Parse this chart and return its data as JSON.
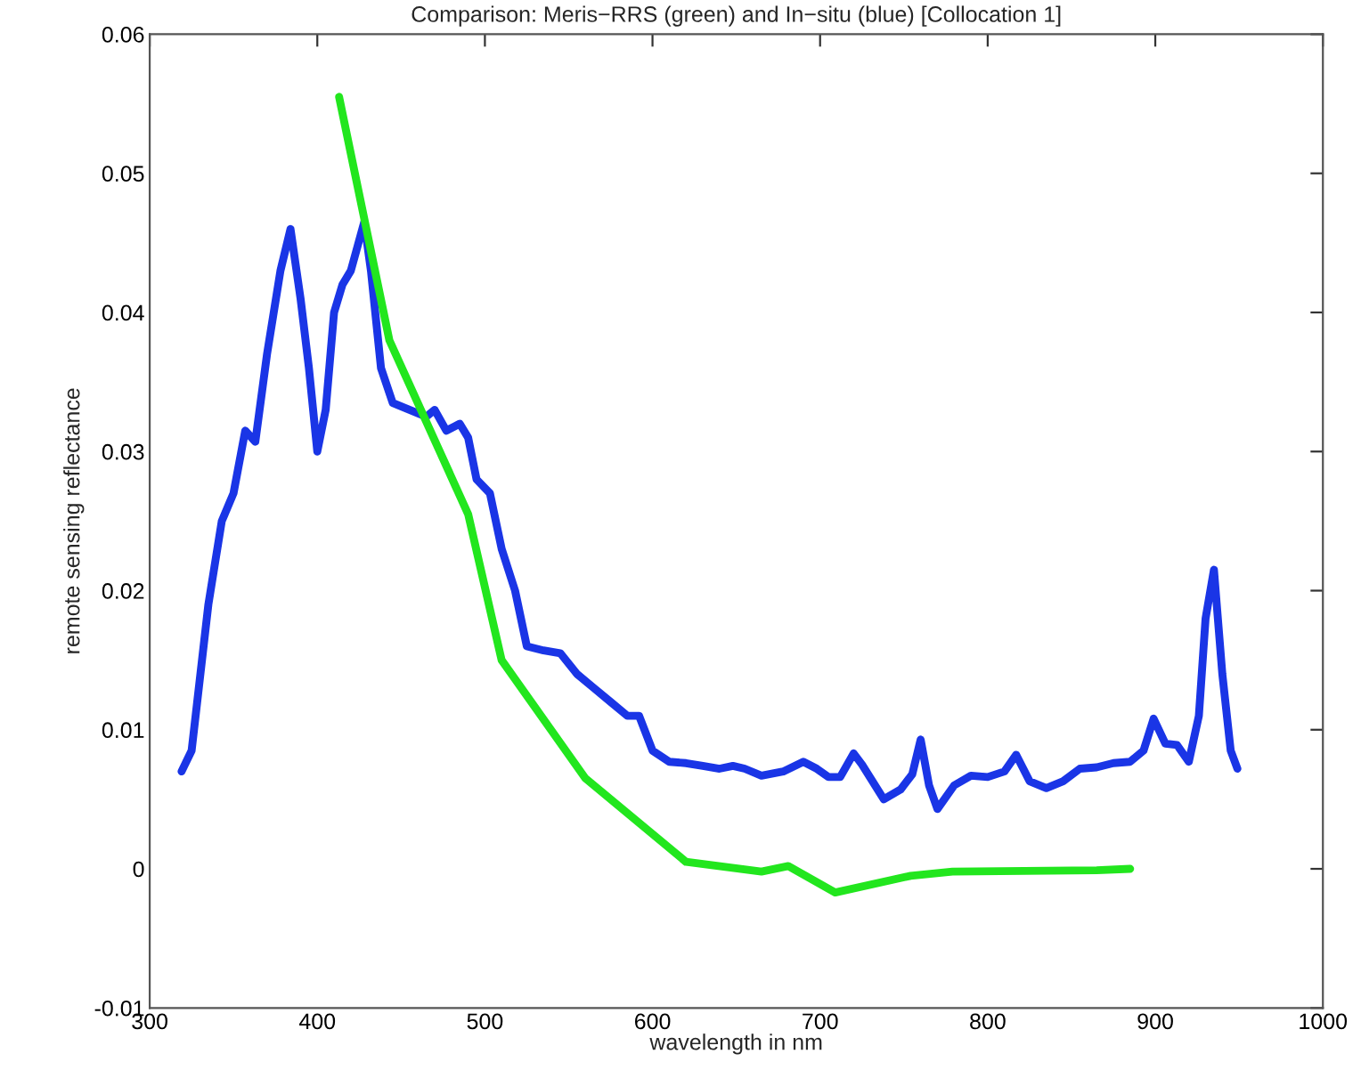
{
  "chart_data": {
    "type": "line",
    "title": "Comparison: Meris−RRS (green) and In−situ (blue) [Collocation 1]",
    "xlabel": "wavelength in nm",
    "ylabel": "remote sensing reflectance",
    "xlim": [
      300,
      1000
    ],
    "xticks": [
      300,
      400,
      500,
      600,
      700,
      800,
      900,
      1000
    ],
    "ylim": [
      -0.01,
      0.06
    ],
    "yticks": [
      -0.01,
      0,
      0.01,
      0.02,
      0.03,
      0.04,
      0.05,
      0.06
    ],
    "grid": false,
    "marker": "none",
    "line_style": "solid",
    "series": [
      {
        "color": "#1a35e6",
        "x": [
          319,
          325,
          335,
          343,
          350,
          357,
          363,
          370,
          378,
          384,
          390,
          395,
          400,
          405,
          410,
          415,
          420,
          428,
          432,
          438,
          445,
          455,
          465,
          470,
          477,
          485,
          490,
          495,
          503,
          510,
          518,
          525,
          535,
          545,
          555,
          565,
          575,
          585,
          592,
          600,
          610,
          620,
          630,
          640,
          648,
          655,
          665,
          678,
          690,
          698,
          705,
          712,
          720,
          725,
          738,
          748,
          755,
          760,
          765,
          770,
          780,
          790,
          800,
          810,
          817,
          825,
          835,
          845,
          855,
          865,
          875,
          885,
          893,
          899,
          906,
          913,
          920,
          926,
          930,
          935,
          940,
          945,
          949
        ],
        "values": [
          0.007,
          0.0085,
          0.019,
          0.025,
          0.027,
          0.0315,
          0.0307,
          0.037,
          0.043,
          0.046,
          0.041,
          0.036,
          0.03,
          0.033,
          0.04,
          0.042,
          0.043,
          0.0465,
          0.043,
          0.036,
          0.0335,
          0.033,
          0.0325,
          0.033,
          0.0315,
          0.032,
          0.031,
          0.028,
          0.027,
          0.023,
          0.02,
          0.016,
          0.0157,
          0.0155,
          0.014,
          0.013,
          0.012,
          0.011,
          0.011,
          0.0085,
          0.0077,
          0.0076,
          0.0074,
          0.0072,
          0.0074,
          0.0072,
          0.0067,
          0.007,
          0.0077,
          0.0072,
          0.0066,
          0.0066,
          0.0083,
          0.0075,
          0.005,
          0.0057,
          0.0068,
          0.0093,
          0.006,
          0.0043,
          0.006,
          0.0067,
          0.0066,
          0.007,
          0.0082,
          0.0063,
          0.0058,
          0.0063,
          0.0072,
          0.0073,
          0.0076,
          0.0077,
          0.0085,
          0.0108,
          0.009,
          0.0089,
          0.0077,
          0.011,
          0.018,
          0.0215,
          0.014,
          0.0085,
          0.0072
        ]
      },
      {
        "color": "#22e61e",
        "x": [
          413,
          443,
          490,
          510,
          560,
          620,
          665,
          681,
          709,
          754,
          779,
          865,
          885
        ],
        "values": [
          0.0555,
          0.038,
          0.0255,
          0.015,
          0.0065,
          0.0005,
          -0.0002,
          0.0002,
          -0.0017,
          -0.0005,
          -0.0002,
          -0.0001,
          0.0
        ]
      }
    ]
  }
}
